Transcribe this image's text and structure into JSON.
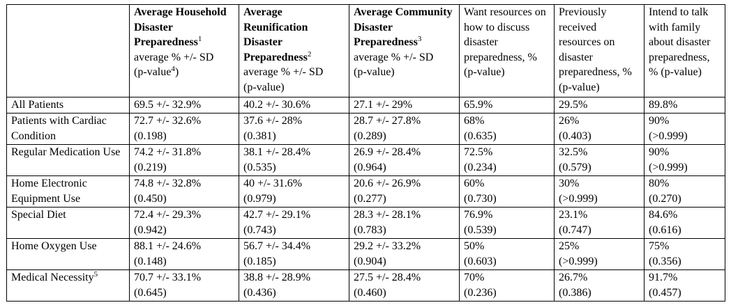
{
  "table": {
    "headers": [
      {
        "bold": "Average Household Disaster Preparedness",
        "sup": "1",
        "rest_lines": [
          "average % +/- SD",
          "(p-value"
        ],
        "rest_sup": "4",
        "rest_tail": ")"
      },
      {
        "bold": "Average Reunification Disaster Preparedness",
        "sup": "2",
        "rest_lines": [
          "average % +/- SD",
          "(p-value)"
        ]
      },
      {
        "bold": "Average Community Disaster Preparedness",
        "sup": "3",
        "rest_lines": [
          "average % +/- SD",
          "(p-value)"
        ]
      },
      {
        "text": "Want resources on how to discuss disaster preparedness, % (p-value)"
      },
      {
        "text": "Previously received resources on disaster preparedness, % (p-value)"
      },
      {
        "text": "Intend to talk with family about disaster preparedness, % (p-value)"
      }
    ],
    "rows": [
      {
        "label": "All Patients",
        "cells": [
          {
            "v": "69.5 +/- 32.9%",
            "p": ""
          },
          {
            "v": "40.2 +/- 30.6%",
            "p": ""
          },
          {
            "v": "27.1 +/- 29%",
            "p": ""
          },
          {
            "v": "65.9%",
            "p": ""
          },
          {
            "v": "29.5%",
            "p": ""
          },
          {
            "v": "89.8%",
            "p": ""
          }
        ]
      },
      {
        "label": "Patients with Cardiac Condition",
        "cells": [
          {
            "v": "72.7 +/- 32.6%",
            "p": "(0.198)"
          },
          {
            "v": "37.6 +/- 28%",
            "p": "(0.381)"
          },
          {
            "v": "28.7 +/- 27.8%",
            "p": "(0.289)"
          },
          {
            "v": "68%",
            "p": "(0.635)"
          },
          {
            "v": "26%",
            "p": "(0.403)"
          },
          {
            "v": "90%",
            "p": "(>0.999)"
          }
        ]
      },
      {
        "label": "Regular Medication Use",
        "cells": [
          {
            "v": "74.2 +/- 31.8%",
            "p": "(0.219)"
          },
          {
            "v": "38.1 +/- 28.4%",
            "p": "(0.535)"
          },
          {
            "v": "26.9 +/- 28.4%",
            "p": "(0.964)"
          },
          {
            "v": "72.5%",
            "p": "(0.234)"
          },
          {
            "v": "32.5%",
            "p": "(0.579)"
          },
          {
            "v": "90%",
            "p": "(>0.999)"
          }
        ]
      },
      {
        "label": "Home Electronic Equipment Use",
        "cells": [
          {
            "v": "74.8 +/- 32.8%",
            "p": "(0.450)"
          },
          {
            "v": "40 +/- 31.6%",
            "p": "(0.979)"
          },
          {
            "v": "20.6 +/- 26.9%",
            "p": "(0.277)"
          },
          {
            "v": "60%",
            "p": "(0.730)"
          },
          {
            "v": "30%",
            "p": "(>0.999)"
          },
          {
            "v": "80%",
            "p": "(0.270)"
          }
        ]
      },
      {
        "label": "Special Diet",
        "cells": [
          {
            "v": "72.4 +/- 29.3%",
            "p": "(0.942)"
          },
          {
            "v": "42.7 +/- 29.1%",
            "p": "(0.743)"
          },
          {
            "v": "28.3 +/- 28.1%",
            "p": "(0.783)"
          },
          {
            "v": "76.9%",
            "p": "(0.539)"
          },
          {
            "v": "23.1%",
            "p": "(0.747)"
          },
          {
            "v": "84.6%",
            "p": "(0.616)"
          }
        ]
      },
      {
        "label": "Home Oxygen Use",
        "cells": [
          {
            "v": "88.1 +/- 24.6%",
            "p": "(0.148)"
          },
          {
            "v": "56.7 +/- 34.4%",
            "p": "(0.185)"
          },
          {
            "v": "29.2 +/- 33.2%",
            "p": "(0.904)"
          },
          {
            "v": "50%",
            "p": "(0.603)"
          },
          {
            "v": "25%",
            "p": "(>0.999)"
          },
          {
            "v": "75%",
            "p": "(0.356)"
          }
        ]
      },
      {
        "label": "Medical Necessity",
        "label_sup": "5",
        "cells": [
          {
            "v": "70.7 +/- 33.1%",
            "p": "(0.645)"
          },
          {
            "v": "38.8 +/- 28.9%",
            "p": "(0.436)"
          },
          {
            "v": "27.5 +/- 28.4%",
            "p": "(0.460)"
          },
          {
            "v": "70%",
            "p": "(0.236)"
          },
          {
            "v": "26.7%",
            "p": "(0.386)"
          },
          {
            "v": "91.7%",
            "p": "(0.457)"
          }
        ]
      }
    ]
  }
}
